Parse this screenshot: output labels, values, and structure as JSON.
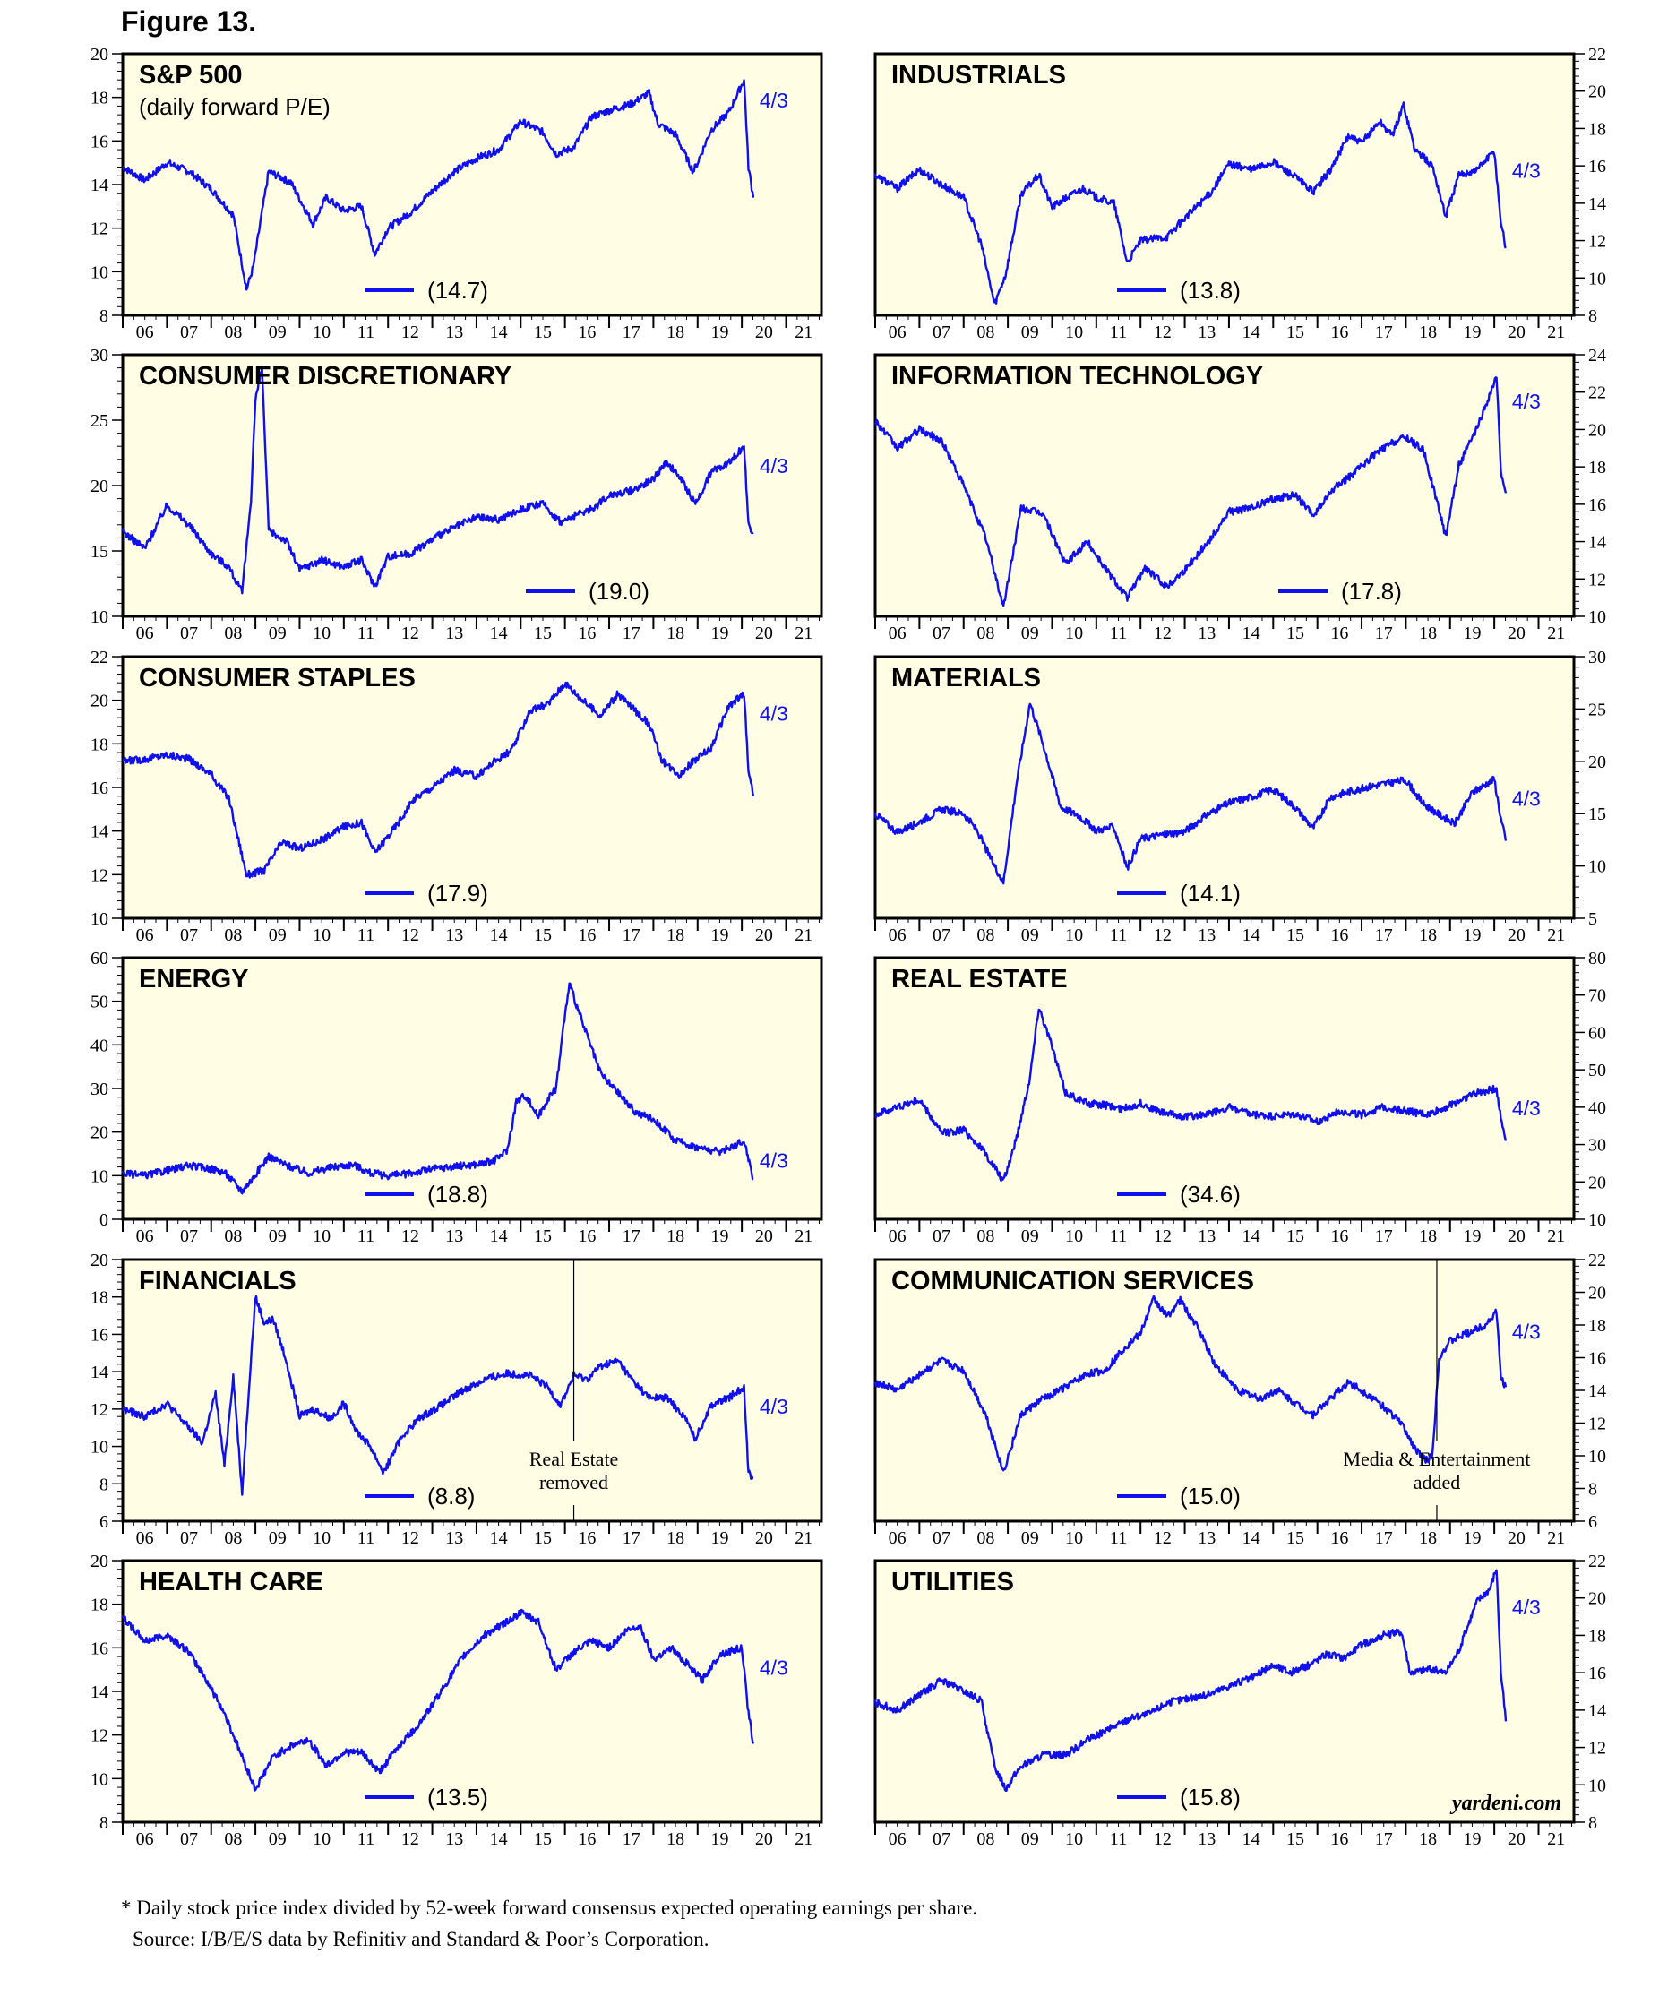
{
  "figure_title": "Figure 13.",
  "footnote": "* Daily stock price index divided by 52-week forward consensus expected operating earnings per share.",
  "source": "Source: I/B/E/S data by Refinitiv and Standard & Poor’s Corporation.",
  "watermark": "yardeni.com",
  "date_marker": "4/3",
  "colors": {
    "line": "#1010ee",
    "panel_bg": "#fffee4",
    "frame": "#000000"
  },
  "x_ticks": [
    "06",
    "07",
    "08",
    "09",
    "10",
    "11",
    "12",
    "13",
    "14",
    "15",
    "16",
    "17",
    "18",
    "19",
    "20",
    "21"
  ],
  "chart_data": [
    {
      "type": "line",
      "title": "S&P 500",
      "subtitle": "(daily forward P/E)",
      "avg_label": "(14.7)",
      "marker": "4/3",
      "ylim": [
        8,
        20
      ],
      "yticks": [
        8,
        10,
        12,
        14,
        16,
        18,
        20
      ],
      "x": [
        2006.0,
        2006.5,
        2007.0,
        2007.5,
        2008.0,
        2008.5,
        2008.8,
        2008.95,
        2009.3,
        2009.8,
        2010.3,
        2010.6,
        2011.0,
        2011.4,
        2011.7,
        2012.0,
        2012.5,
        2013.0,
        2013.5,
        2014.0,
        2014.5,
        2015.0,
        2015.5,
        2015.8,
        2016.2,
        2016.6,
        2017.0,
        2017.5,
        2017.9,
        2018.1,
        2018.5,
        2018.9,
        2019.0,
        2019.3,
        2019.7,
        2020.05,
        2020.15,
        2020.26
      ],
      "y": [
        14.8,
        14.2,
        15.0,
        14.6,
        13.8,
        12.6,
        9.2,
        10.2,
        14.6,
        14.1,
        12.2,
        13.4,
        12.8,
        13.0,
        10.8,
        12.0,
        12.7,
        13.7,
        14.6,
        15.2,
        15.6,
        16.9,
        16.4,
        15.4,
        15.7,
        17.1,
        17.4,
        17.7,
        18.2,
        16.8,
        16.3,
        14.6,
        15.0,
        16.5,
        17.3,
        18.8,
        14.8,
        13.4
      ]
    },
    {
      "type": "line",
      "title": "INDUSTRIALS",
      "avg_label": "(13.8)",
      "marker": "4/3",
      "ylim": [
        8,
        22
      ],
      "yticks": [
        8,
        10,
        12,
        14,
        16,
        18,
        20,
        22
      ],
      "x": [
        2006.0,
        2006.5,
        2007.0,
        2007.5,
        2008.0,
        2008.4,
        2008.7,
        2008.95,
        2009.3,
        2009.7,
        2010.0,
        2010.4,
        2010.7,
        2011.0,
        2011.4,
        2011.7,
        2012.0,
        2012.6,
        2013.0,
        2013.6,
        2014.0,
        2014.5,
        2015.0,
        2015.5,
        2015.9,
        2016.3,
        2016.7,
        2017.0,
        2017.4,
        2017.7,
        2017.95,
        2018.2,
        2018.6,
        2018.9,
        2019.2,
        2019.6,
        2020.0,
        2020.15,
        2020.26
      ],
      "y": [
        15.5,
        14.8,
        15.8,
        15.0,
        14.3,
        11.8,
        8.6,
        10.2,
        14.5,
        15.5,
        13.8,
        14.4,
        14.8,
        14.3,
        14.0,
        10.8,
        12.0,
        12.2,
        13.2,
        14.6,
        16.1,
        15.8,
        16.2,
        15.4,
        14.6,
        15.8,
        17.6,
        17.2,
        18.4,
        17.6,
        19.3,
        16.9,
        16.0,
        13.3,
        15.5,
        15.8,
        16.8,
        13.0,
        11.6
      ]
    },
    {
      "type": "line",
      "title": "CONSUMER DISCRETIONARY",
      "avg_label": "(19.0)",
      "marker": "4/3",
      "ylim": [
        10,
        30
      ],
      "yticks": [
        10,
        15,
        20,
        25,
        30
      ],
      "x": [
        2006.0,
        2006.5,
        2007.0,
        2007.5,
        2008.0,
        2008.4,
        2008.7,
        2008.9,
        2009.0,
        2009.15,
        2009.3,
        2009.7,
        2010.0,
        2010.5,
        2011.0,
        2011.4,
        2011.7,
        2012.0,
        2012.5,
        2013.0,
        2013.5,
        2014.0,
        2014.5,
        2015.0,
        2015.5,
        2015.9,
        2016.3,
        2016.7,
        2017.0,
        2017.5,
        2018.0,
        2018.3,
        2018.6,
        2018.95,
        2019.3,
        2019.7,
        2020.05,
        2020.15,
        2020.26
      ],
      "y": [
        16.5,
        15.2,
        18.5,
        17.0,
        14.8,
        13.8,
        11.8,
        19.0,
        26.5,
        29.0,
        16.5,
        15.8,
        13.6,
        14.3,
        13.8,
        14.3,
        12.3,
        14.6,
        14.8,
        15.9,
        16.8,
        17.6,
        17.4,
        18.2,
        18.6,
        17.2,
        17.8,
        18.4,
        19.3,
        19.6,
        20.5,
        21.8,
        20.6,
        18.6,
        21.0,
        21.8,
        23.0,
        17.0,
        16.4
      ]
    },
    {
      "type": "line",
      "title": "INFORMATION TECHNOLOGY",
      "avg_label": "(17.8)",
      "marker": "4/3",
      "ylim": [
        10,
        24
      ],
      "yticks": [
        10,
        12,
        14,
        16,
        18,
        20,
        22,
        24
      ],
      "x": [
        2006.0,
        2006.5,
        2007.0,
        2007.5,
        2008.0,
        2008.5,
        2008.9,
        2009.3,
        2009.8,
        2010.3,
        2010.8,
        2011.2,
        2011.7,
        2012.1,
        2012.6,
        2013.0,
        2013.6,
        2014.0,
        2014.5,
        2015.0,
        2015.5,
        2015.9,
        2016.4,
        2016.8,
        2017.3,
        2017.7,
        2018.0,
        2018.4,
        2018.9,
        2019.2,
        2019.6,
        2020.05,
        2020.15,
        2020.26
      ],
      "y": [
        20.5,
        19.0,
        20.0,
        19.4,
        17.0,
        14.2,
        10.5,
        15.8,
        15.5,
        12.8,
        14.0,
        12.6,
        11.0,
        12.6,
        11.6,
        12.5,
        14.2,
        15.6,
        15.8,
        16.3,
        16.5,
        15.4,
        16.9,
        17.6,
        18.7,
        19.3,
        19.6,
        18.9,
        14.3,
        18.1,
        20.0,
        22.8,
        17.8,
        16.6
      ]
    },
    {
      "type": "line",
      "title": "CONSUMER STAPLES",
      "avg_label": "(17.9)",
      "marker": "4/3",
      "ylim": [
        10,
        22
      ],
      "yticks": [
        10,
        12,
        14,
        16,
        18,
        20,
        22
      ],
      "x": [
        2006.0,
        2006.5,
        2007.0,
        2007.5,
        2008.0,
        2008.4,
        2008.8,
        2009.2,
        2009.6,
        2010.0,
        2010.5,
        2011.0,
        2011.4,
        2011.7,
        2012.2,
        2012.6,
        2013.0,
        2013.5,
        2014.0,
        2014.4,
        2014.8,
        2015.2,
        2015.6,
        2016.0,
        2016.4,
        2016.8,
        2017.2,
        2017.6,
        2017.9,
        2018.2,
        2018.6,
        2018.9,
        2019.3,
        2019.7,
        2020.05,
        2020.15,
        2020.26
      ],
      "y": [
        17.2,
        17.3,
        17.5,
        17.3,
        16.6,
        15.5,
        12.0,
        12.2,
        13.5,
        13.2,
        13.6,
        14.2,
        14.4,
        13.0,
        14.3,
        15.5,
        16.0,
        16.8,
        16.5,
        17.2,
        17.7,
        19.5,
        19.8,
        20.8,
        20.0,
        19.3,
        20.3,
        19.5,
        18.9,
        17.2,
        16.6,
        17.2,
        17.8,
        19.7,
        20.3,
        16.8,
        15.6
      ]
    },
    {
      "type": "line",
      "title": "MATERIALS",
      "avg_label": "(14.1)",
      "marker": "4/3",
      "ylim": [
        5,
        30
      ],
      "yticks": [
        5,
        10,
        15,
        20,
        25,
        30
      ],
      "x": [
        2006.0,
        2006.5,
        2007.0,
        2007.5,
        2008.0,
        2008.3,
        2008.6,
        2008.9,
        2009.2,
        2009.5,
        2009.8,
        2010.2,
        2010.6,
        2011.0,
        2011.4,
        2011.7,
        2012.0,
        2012.5,
        2013.0,
        2013.5,
        2014.0,
        2014.5,
        2015.0,
        2015.5,
        2015.9,
        2016.3,
        2016.8,
        2017.2,
        2017.7,
        2018.0,
        2018.4,
        2018.8,
        2019.1,
        2019.5,
        2020.0,
        2020.15,
        2020.26
      ],
      "y": [
        15.0,
        13.2,
        14.2,
        15.4,
        15.0,
        13.4,
        10.8,
        8.4,
        18.0,
        25.6,
        21.6,
        15.6,
        14.8,
        13.4,
        13.7,
        9.8,
        12.6,
        13.0,
        13.3,
        14.9,
        16.0,
        16.6,
        17.3,
        15.6,
        13.6,
        16.6,
        17.2,
        17.6,
        18.0,
        18.2,
        15.9,
        14.8,
        14.0,
        17.0,
        18.3,
        14.5,
        12.4
      ]
    },
    {
      "type": "line",
      "title": "ENERGY",
      "avg_label": "(18.8)",
      "marker": "4/3",
      "ylim": [
        0,
        60
      ],
      "yticks": [
        0,
        10,
        20,
        30,
        40,
        50,
        60
      ],
      "x": [
        2006.0,
        2006.5,
        2007.0,
        2007.5,
        2008.0,
        2008.3,
        2008.7,
        2008.95,
        2009.3,
        2009.7,
        2010.2,
        2010.7,
        2011.2,
        2011.6,
        2012.0,
        2012.5,
        2013.0,
        2013.5,
        2014.0,
        2014.4,
        2014.7,
        2014.9,
        2015.1,
        2015.4,
        2015.6,
        2015.8,
        2015.95,
        2016.1,
        2016.4,
        2016.8,
        2017.2,
        2017.6,
        2018.0,
        2018.5,
        2019.0,
        2019.5,
        2020.05,
        2020.15,
        2020.26
      ],
      "y": [
        10.5,
        10.0,
        11.2,
        12.3,
        11.6,
        10.8,
        6.5,
        9.5,
        14.5,
        12.4,
        10.6,
        11.9,
        12.6,
        10.6,
        10.0,
        10.5,
        11.6,
        12.1,
        12.6,
        13.4,
        16.0,
        27.0,
        28.5,
        23.5,
        27.5,
        30.0,
        43.0,
        54.0,
        45.0,
        33.5,
        29.0,
        24.5,
        23.0,
        18.0,
        16.5,
        15.5,
        18.0,
        14.0,
        9.2
      ]
    },
    {
      "type": "line",
      "title": "REAL ESTATE",
      "avg_label": "(34.6)",
      "marker": "4/3",
      "ylim": [
        10,
        80
      ],
      "yticks": [
        10,
        20,
        30,
        40,
        50,
        60,
        70,
        80
      ],
      "x": [
        2006.0,
        2006.5,
        2007.0,
        2007.5,
        2008.0,
        2008.4,
        2008.7,
        2008.9,
        2009.2,
        2009.5,
        2009.7,
        2009.95,
        2010.3,
        2010.8,
        2011.2,
        2011.6,
        2012.0,
        2012.5,
        2013.0,
        2013.5,
        2014.0,
        2014.5,
        2015.0,
        2015.5,
        2016.0,
        2016.5,
        2017.0,
        2017.5,
        2018.0,
        2018.5,
        2019.0,
        2019.5,
        2020.05,
        2020.15,
        2020.26
      ],
      "y": [
        38.0,
        40.0,
        42.0,
        33.0,
        34.0,
        29.0,
        24.0,
        20.0,
        32.0,
        48.0,
        67.0,
        58.0,
        44.0,
        41.0,
        40.5,
        39.5,
        41.0,
        38.5,
        37.5,
        38.0,
        40.0,
        38.0,
        37.5,
        38.0,
        36.0,
        39.0,
        38.0,
        40.0,
        39.0,
        38.0,
        40.5,
        43.5,
        45.0,
        37.0,
        31.0
      ]
    },
    {
      "type": "line",
      "title": "FINANCIALS",
      "avg_label": "(8.8)",
      "marker": "4/3",
      "annotation": [
        "Real Estate",
        "removed"
      ],
      "annotation_x": 2016.2,
      "ylim": [
        6,
        20
      ],
      "yticks": [
        6,
        8,
        10,
        12,
        14,
        16,
        18,
        20
      ],
      "x": [
        2006.0,
        2006.5,
        2007.0,
        2007.5,
        2007.8,
        2008.1,
        2008.3,
        2008.5,
        2008.7,
        2008.85,
        2009.0,
        2009.2,
        2009.4,
        2009.7,
        2010.0,
        2010.3,
        2010.7,
        2011.0,
        2011.3,
        2011.6,
        2011.9,
        2012.3,
        2012.7,
        2013.2,
        2013.7,
        2014.2,
        2014.7,
        2015.2,
        2015.6,
        2015.9,
        2016.2,
        2016.5,
        2016.8,
        2017.2,
        2017.5,
        2017.9,
        2018.3,
        2018.7,
        2018.95,
        2019.3,
        2019.7,
        2020.05,
        2020.15,
        2020.26
      ],
      "y": [
        12.0,
        11.6,
        12.3,
        11.0,
        10.2,
        12.8,
        9.0,
        13.8,
        7.5,
        13.0,
        18.0,
        16.6,
        16.8,
        14.6,
        11.6,
        12.0,
        11.5,
        12.3,
        10.8,
        10.0,
        8.6,
        10.5,
        11.5,
        12.2,
        13.0,
        13.6,
        13.9,
        13.8,
        13.2,
        12.2,
        13.8,
        13.6,
        14.3,
        14.6,
        13.6,
        12.6,
        12.6,
        11.6,
        10.4,
        12.2,
        12.6,
        13.2,
        8.6,
        8.3
      ]
    },
    {
      "type": "line",
      "title": "COMMUNICATION SERVICES",
      "avg_label": "(15.0)",
      "marker": "4/3",
      "annotation": [
        "Media & Entertainment",
        "added"
      ],
      "annotation_x": 2018.7,
      "ylim": [
        6,
        22
      ],
      "yticks": [
        6,
        8,
        10,
        12,
        14,
        16,
        18,
        20,
        22
      ],
      "x": [
        2006.0,
        2006.5,
        2007.0,
        2007.5,
        2008.0,
        2008.5,
        2008.9,
        2009.3,
        2009.8,
        2010.3,
        2010.8,
        2011.2,
        2011.6,
        2012.0,
        2012.3,
        2012.6,
        2012.9,
        2013.3,
        2013.7,
        2014.2,
        2014.7,
        2015.1,
        2015.5,
        2015.9,
        2016.3,
        2016.7,
        2017.1,
        2017.5,
        2017.9,
        2018.2,
        2018.45,
        2018.6,
        2018.75,
        2019.0,
        2019.4,
        2019.8,
        2020.05,
        2020.15,
        2020.26
      ],
      "y": [
        14.5,
        14.0,
        15.0,
        15.8,
        15.2,
        12.5,
        9.0,
        12.5,
        13.5,
        14.2,
        15.0,
        15.2,
        16.5,
        17.5,
        19.6,
        18.5,
        19.5,
        17.8,
        15.5,
        14.0,
        13.5,
        14.0,
        13.2,
        12.5,
        13.5,
        14.5,
        13.8,
        13.0,
        12.0,
        10.5,
        9.7,
        10.0,
        16.0,
        17.0,
        17.5,
        18.0,
        18.8,
        14.8,
        14.2
      ]
    },
    {
      "type": "line",
      "title": "HEALTH CARE",
      "avg_label": "(13.5)",
      "marker": "4/3",
      "ylim": [
        8,
        20
      ],
      "yticks": [
        8,
        10,
        12,
        14,
        16,
        18,
        20
      ],
      "x": [
        2006.0,
        2006.5,
        2007.0,
        2007.5,
        2007.9,
        2008.3,
        2008.7,
        2009.0,
        2009.4,
        2009.8,
        2010.2,
        2010.6,
        2011.0,
        2011.4,
        2011.8,
        2012.2,
        2012.7,
        2013.2,
        2013.7,
        2014.2,
        2014.6,
        2015.0,
        2015.4,
        2015.8,
        2016.2,
        2016.6,
        2017.0,
        2017.4,
        2017.7,
        2018.0,
        2018.4,
        2018.8,
        2019.1,
        2019.5,
        2020.0,
        2020.15,
        2020.26
      ],
      "y": [
        17.4,
        16.3,
        16.6,
        15.8,
        14.5,
        13.0,
        11.0,
        9.5,
        11.0,
        11.5,
        11.8,
        10.6,
        11.2,
        11.2,
        10.3,
        11.4,
        12.5,
        14.0,
        15.6,
        16.6,
        17.1,
        17.6,
        17.2,
        15.0,
        15.8,
        16.3,
        16.0,
        16.8,
        17.0,
        15.5,
        16.0,
        15.2,
        14.5,
        15.7,
        16.0,
        13.0,
        11.6
      ]
    },
    {
      "type": "line",
      "title": "UTILITIES",
      "avg_label": "(15.8)",
      "marker": "4/3",
      "ylim": [
        8,
        22
      ],
      "yticks": [
        8,
        10,
        12,
        14,
        16,
        18,
        20,
        22
      ],
      "x": [
        2006.0,
        2006.5,
        2007.0,
        2007.5,
        2008.0,
        2008.4,
        2008.7,
        2008.95,
        2009.3,
        2009.8,
        2010.3,
        2010.8,
        2011.3,
        2011.8,
        2012.2,
        2012.6,
        2013.0,
        2013.5,
        2014.0,
        2014.5,
        2015.0,
        2015.4,
        2015.8,
        2016.2,
        2016.6,
        2017.0,
        2017.5,
        2017.9,
        2018.1,
        2018.5,
        2018.9,
        2019.2,
        2019.6,
        2019.9,
        2020.05,
        2020.15,
        2020.26
      ],
      "y": [
        14.4,
        14.0,
        14.8,
        15.6,
        15.0,
        14.5,
        11.0,
        9.8,
        11.0,
        11.6,
        11.6,
        12.4,
        13.0,
        13.6,
        13.8,
        14.4,
        14.6,
        14.8,
        15.3,
        15.7,
        16.4,
        16.0,
        16.4,
        17.0,
        16.8,
        17.5,
        18.0,
        18.2,
        16.0,
        16.2,
        16.0,
        17.2,
        19.8,
        20.5,
        21.6,
        16.0,
        13.4
      ]
    }
  ]
}
